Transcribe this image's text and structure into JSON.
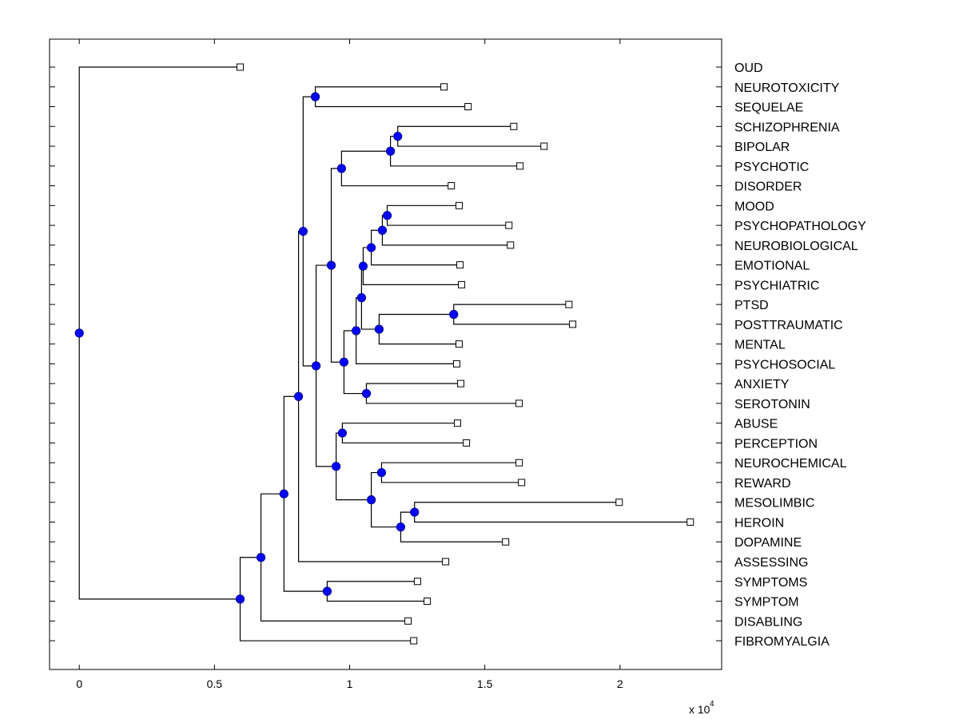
{
  "chart_data": {
    "type": "dendrogram",
    "title": "",
    "xlabel": "",
    "ylabel": "",
    "x_scale_exponent_label": "x 10",
    "x_scale_exponent": "4",
    "xlim": [
      -0.11,
      2.376
    ],
    "x_ticks": [
      0,
      0.5,
      1,
      1.5,
      2
    ],
    "x_tick_labels": [
      "0",
      "0.5",
      "1",
      "1.5",
      "2"
    ],
    "grid": false,
    "leaf_marker": "open-square",
    "node_marker": "filled-circle",
    "node_color": "#0000ff",
    "line_color": "#000000",
    "leaves": [
      {
        "id": "OUD",
        "label": "OUD",
        "x": 0.595
      },
      {
        "id": "NEUROTOXICITY",
        "label": "NEUROTOXICITY",
        "x": 1.349
      },
      {
        "id": "SEQUELAE",
        "label": "SEQUELAE",
        "x": 1.438
      },
      {
        "id": "SCHIZOPHRENIA",
        "label": "SCHIZOPHRENIA",
        "x": 1.607
      },
      {
        "id": "BIPOLAR",
        "label": "BIPOLAR",
        "x": 1.719
      },
      {
        "id": "PSYCHOTIC",
        "label": "PSYCHOTIC",
        "x": 1.63
      },
      {
        "id": "DISORDER",
        "label": "DISORDER",
        "x": 1.376
      },
      {
        "id": "MOOD",
        "label": "MOOD",
        "x": 1.405
      },
      {
        "id": "PSYCHOPATHOLOGY",
        "label": "PSYCHOPATHOLOGY",
        "x": 1.589
      },
      {
        "id": "NEUROBIOLOGICAL",
        "label": "NEUROBIOLOGICAL",
        "x": 1.595
      },
      {
        "id": "EMOTIONAL",
        "label": "EMOTIONAL",
        "x": 1.408
      },
      {
        "id": "PSYCHIATRIC",
        "label": "PSYCHIATRIC",
        "x": 1.414
      },
      {
        "id": "PTSD",
        "label": "PTSD",
        "x": 1.811
      },
      {
        "id": "POSTTRAUMATIC",
        "label": "POSTTRAUMATIC",
        "x": 1.825
      },
      {
        "id": "MENTAL",
        "label": "MENTAL",
        "x": 1.405
      },
      {
        "id": "PSYCHOSOCIAL",
        "label": "PSYCHOSOCIAL",
        "x": 1.396
      },
      {
        "id": "ANXIETY",
        "label": "ANXIETY",
        "x": 1.411
      },
      {
        "id": "SEROTONIN",
        "label": "SEROTONIN",
        "x": 1.627
      },
      {
        "id": "ABUSE",
        "label": "ABUSE",
        "x": 1.399
      },
      {
        "id": "PERCEPTION",
        "label": "PERCEPTION",
        "x": 1.432
      },
      {
        "id": "NEUROCHEMICAL",
        "label": "NEUROCHEMICAL",
        "x": 1.627
      },
      {
        "id": "REWARD",
        "label": "REWARD",
        "x": 1.636
      },
      {
        "id": "MESOLIMBIC",
        "label": "MESOLIMBIC",
        "x": 1.997
      },
      {
        "id": "HEROIN",
        "label": "HEROIN",
        "x": 2.26
      },
      {
        "id": "DOPAMINE",
        "label": "DOPAMINE",
        "x": 1.577
      },
      {
        "id": "ASSESSING",
        "label": "ASSESSING",
        "x": 1.355
      },
      {
        "id": "SYMPTOMS",
        "label": "SYMPTOMS",
        "x": 1.251
      },
      {
        "id": "SYMPTOM",
        "label": "SYMPTOM",
        "x": 1.287
      },
      {
        "id": "DISABLING",
        "label": "DISABLING",
        "x": 1.216
      },
      {
        "id": "FIBROMYALGIA",
        "label": "FIBROMYALGIA",
        "x": 1.237
      }
    ],
    "nodes": [
      {
        "id": "n_neuro",
        "x": 0.873,
        "children": [
          "NEUROTOXICITY",
          "SEQUELAE"
        ]
      },
      {
        "id": "n_schizo",
        "x": 1.178,
        "children": [
          "SCHIZOPHRENIA",
          "BIPOLAR"
        ]
      },
      {
        "id": "n_bip",
        "x": 1.151,
        "children": [
          "n_schizo",
          "PSYCHOTIC"
        ]
      },
      {
        "id": "n_dis",
        "x": 0.97,
        "children": [
          "n_bip",
          "DISORDER"
        ]
      },
      {
        "id": "n_mood",
        "x": 1.139,
        "children": [
          "MOOD",
          "PSYCHOPATHOLOGY"
        ]
      },
      {
        "id": "n2",
        "x": 1.121,
        "children": [
          "n_mood",
          "NEUROBIOLOGICAL"
        ]
      },
      {
        "id": "n3",
        "x": 1.08,
        "children": [
          "n2",
          "EMOTIONAL"
        ]
      },
      {
        "id": "n4",
        "x": 1.05,
        "children": [
          "n3",
          "PSYCHIATRIC"
        ]
      },
      {
        "id": "n_ptsd",
        "x": 1.385,
        "children": [
          "PTSD",
          "POSTTRAUMATIC"
        ]
      },
      {
        "id": "n5",
        "x": 1.109,
        "children": [
          "n_ptsd",
          "MENTAL"
        ]
      },
      {
        "id": "n6",
        "x": 1.044,
        "children": [
          "n4",
          "n5"
        ]
      },
      {
        "id": "n7",
        "x": 1.024,
        "children": [
          "n6",
          "PSYCHOSOCIAL"
        ]
      },
      {
        "id": "n_anx",
        "x": 1.062,
        "children": [
          "ANXIETY",
          "SEROTONIN"
        ]
      },
      {
        "id": "n8",
        "x": 0.979,
        "children": [
          "n7",
          "n_anx"
        ]
      },
      {
        "id": "n9",
        "x": 0.932,
        "children": [
          "n_dis",
          "n8"
        ]
      },
      {
        "id": "n_abuse",
        "x": 0.973,
        "children": [
          "ABUSE",
          "PERCEPTION"
        ]
      },
      {
        "id": "n_nc",
        "x": 1.118,
        "children": [
          "NEUROCHEMICAL",
          "REWARD"
        ]
      },
      {
        "id": "n_meso",
        "x": 1.24,
        "children": [
          "MESOLIMBIC",
          "HEROIN"
        ]
      },
      {
        "id": "n_dop",
        "x": 1.189,
        "children": [
          "n_meso",
          "DOPAMINE"
        ]
      },
      {
        "id": "n10",
        "x": 1.08,
        "children": [
          "n_nc",
          "n_dop"
        ]
      },
      {
        "id": "n11",
        "x": 0.95,
        "children": [
          "n_abuse",
          "n10"
        ]
      },
      {
        "id": "n12",
        "x": 0.876,
        "children": [
          "n9",
          "n11"
        ]
      },
      {
        "id": "n13",
        "x": 0.828,
        "children": [
          "n_neuro",
          "n12"
        ]
      },
      {
        "id": "n14",
        "x": 0.811,
        "children": [
          "n13",
          "ASSESSING"
        ]
      },
      {
        "id": "n_symp",
        "x": 0.917,
        "children": [
          "SYMPTOMS",
          "SYMPTOM"
        ]
      },
      {
        "id": "n15",
        "x": 0.757,
        "children": [
          "n14",
          "n_symp"
        ]
      },
      {
        "id": "n16",
        "x": 0.672,
        "children": [
          "n15",
          "DISABLING"
        ]
      },
      {
        "id": "n17",
        "x": 0.595,
        "children": [
          "n16",
          "FIBROMYALGIA"
        ]
      },
      {
        "id": "root",
        "x": 0.0,
        "children": [
          "OUD",
          "n17"
        ]
      }
    ]
  }
}
